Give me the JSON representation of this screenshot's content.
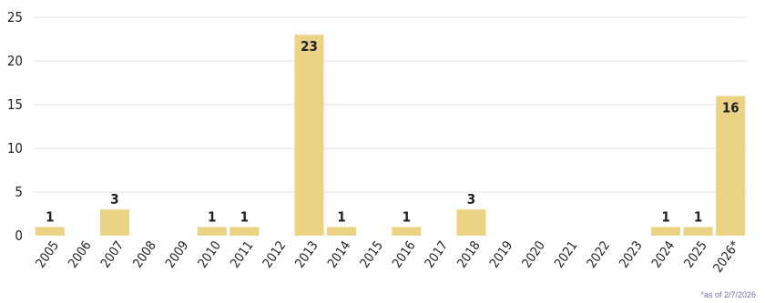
{
  "chart_data": {
    "type": "bar",
    "categories": [
      "2005",
      "2006",
      "2007",
      "2008",
      "2009",
      "2010",
      "2011",
      "2012",
      "2013",
      "2014",
      "2015",
      "2016",
      "2017",
      "2018",
      "2019",
      "2020",
      "2021",
      "2022",
      "2023",
      "2024",
      "2025",
      "2026*"
    ],
    "values": [
      1,
      0,
      3,
      0,
      0,
      1,
      1,
      0,
      23,
      1,
      0,
      1,
      0,
      3,
      0,
      0,
      0,
      0,
      0,
      1,
      1,
      16
    ],
    "data_labels": [
      "1",
      "",
      "3",
      "",
      "",
      "1",
      "1",
      "",
      "23",
      "1",
      "",
      "1",
      "",
      "3",
      "",
      "",
      "",
      "",
      "",
      "1",
      "1",
      "16"
    ],
    "yticks": [
      0,
      5,
      10,
      15,
      20,
      25
    ],
    "ylim": [
      0,
      25
    ],
    "grid": true,
    "title": "",
    "xlabel": "",
    "ylabel": "",
    "bar_color": "#ecd285",
    "grid_color": "#e6e6e6",
    "text_color": "#222222"
  },
  "footnote": "*as of 2/7/2026"
}
